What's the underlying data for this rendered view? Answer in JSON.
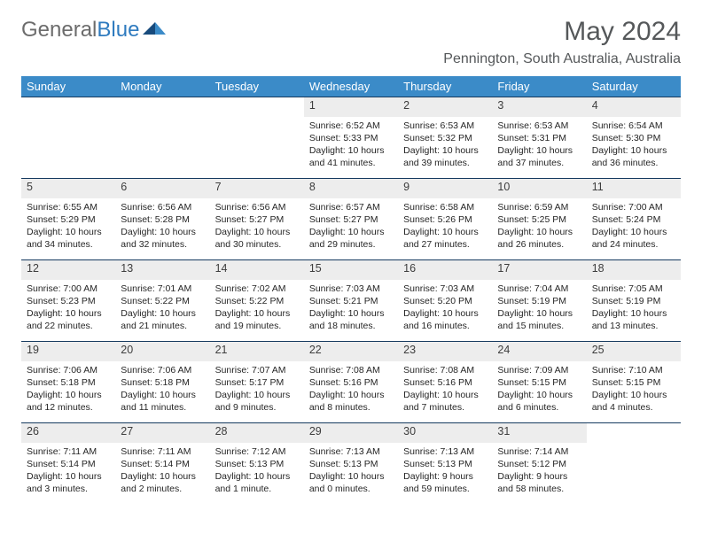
{
  "logo": {
    "text1": "General",
    "text2": "Blue"
  },
  "title": "May 2024",
  "location": "Pennington, South Australia, Australia",
  "weekdays": [
    "Sunday",
    "Monday",
    "Tuesday",
    "Wednesday",
    "Thursday",
    "Friday",
    "Saturday"
  ],
  "colors": {
    "header_bg": "#3b8bc8",
    "header_text": "#ffffff",
    "daynum_bg": "#ededed",
    "rule": "#163a5f",
    "logo_grey": "#6c6c6c",
    "logo_blue": "#2f7bbf",
    "title_color": "#55585a"
  },
  "weeks": [
    [
      null,
      null,
      null,
      {
        "n": "1",
        "sr": "6:52 AM",
        "ss": "5:33 PM",
        "dl": "10 hours and 41 minutes."
      },
      {
        "n": "2",
        "sr": "6:53 AM",
        "ss": "5:32 PM",
        "dl": "10 hours and 39 minutes."
      },
      {
        "n": "3",
        "sr": "6:53 AM",
        "ss": "5:31 PM",
        "dl": "10 hours and 37 minutes."
      },
      {
        "n": "4",
        "sr": "6:54 AM",
        "ss": "5:30 PM",
        "dl": "10 hours and 36 minutes."
      }
    ],
    [
      {
        "n": "5",
        "sr": "6:55 AM",
        "ss": "5:29 PM",
        "dl": "10 hours and 34 minutes."
      },
      {
        "n": "6",
        "sr": "6:56 AM",
        "ss": "5:28 PM",
        "dl": "10 hours and 32 minutes."
      },
      {
        "n": "7",
        "sr": "6:56 AM",
        "ss": "5:27 PM",
        "dl": "10 hours and 30 minutes."
      },
      {
        "n": "8",
        "sr": "6:57 AM",
        "ss": "5:27 PM",
        "dl": "10 hours and 29 minutes."
      },
      {
        "n": "9",
        "sr": "6:58 AM",
        "ss": "5:26 PM",
        "dl": "10 hours and 27 minutes."
      },
      {
        "n": "10",
        "sr": "6:59 AM",
        "ss": "5:25 PM",
        "dl": "10 hours and 26 minutes."
      },
      {
        "n": "11",
        "sr": "7:00 AM",
        "ss": "5:24 PM",
        "dl": "10 hours and 24 minutes."
      }
    ],
    [
      {
        "n": "12",
        "sr": "7:00 AM",
        "ss": "5:23 PM",
        "dl": "10 hours and 22 minutes."
      },
      {
        "n": "13",
        "sr": "7:01 AM",
        "ss": "5:22 PM",
        "dl": "10 hours and 21 minutes."
      },
      {
        "n": "14",
        "sr": "7:02 AM",
        "ss": "5:22 PM",
        "dl": "10 hours and 19 minutes."
      },
      {
        "n": "15",
        "sr": "7:03 AM",
        "ss": "5:21 PM",
        "dl": "10 hours and 18 minutes."
      },
      {
        "n": "16",
        "sr": "7:03 AM",
        "ss": "5:20 PM",
        "dl": "10 hours and 16 minutes."
      },
      {
        "n": "17",
        "sr": "7:04 AM",
        "ss": "5:19 PM",
        "dl": "10 hours and 15 minutes."
      },
      {
        "n": "18",
        "sr": "7:05 AM",
        "ss": "5:19 PM",
        "dl": "10 hours and 13 minutes."
      }
    ],
    [
      {
        "n": "19",
        "sr": "7:06 AM",
        "ss": "5:18 PM",
        "dl": "10 hours and 12 minutes."
      },
      {
        "n": "20",
        "sr": "7:06 AM",
        "ss": "5:18 PM",
        "dl": "10 hours and 11 minutes."
      },
      {
        "n": "21",
        "sr": "7:07 AM",
        "ss": "5:17 PM",
        "dl": "10 hours and 9 minutes."
      },
      {
        "n": "22",
        "sr": "7:08 AM",
        "ss": "5:16 PM",
        "dl": "10 hours and 8 minutes."
      },
      {
        "n": "23",
        "sr": "7:08 AM",
        "ss": "5:16 PM",
        "dl": "10 hours and 7 minutes."
      },
      {
        "n": "24",
        "sr": "7:09 AM",
        "ss": "5:15 PM",
        "dl": "10 hours and 6 minutes."
      },
      {
        "n": "25",
        "sr": "7:10 AM",
        "ss": "5:15 PM",
        "dl": "10 hours and 4 minutes."
      }
    ],
    [
      {
        "n": "26",
        "sr": "7:11 AM",
        "ss": "5:14 PM",
        "dl": "10 hours and 3 minutes."
      },
      {
        "n": "27",
        "sr": "7:11 AM",
        "ss": "5:14 PM",
        "dl": "10 hours and 2 minutes."
      },
      {
        "n": "28",
        "sr": "7:12 AM",
        "ss": "5:13 PM",
        "dl": "10 hours and 1 minute."
      },
      {
        "n": "29",
        "sr": "7:13 AM",
        "ss": "5:13 PM",
        "dl": "10 hours and 0 minutes."
      },
      {
        "n": "30",
        "sr": "7:13 AM",
        "ss": "5:13 PM",
        "dl": "9 hours and 59 minutes."
      },
      {
        "n": "31",
        "sr": "7:14 AM",
        "ss": "5:12 PM",
        "dl": "9 hours and 58 minutes."
      },
      null
    ]
  ],
  "labels": {
    "sunrise": "Sunrise:",
    "sunset": "Sunset:",
    "daylight": "Daylight:"
  }
}
